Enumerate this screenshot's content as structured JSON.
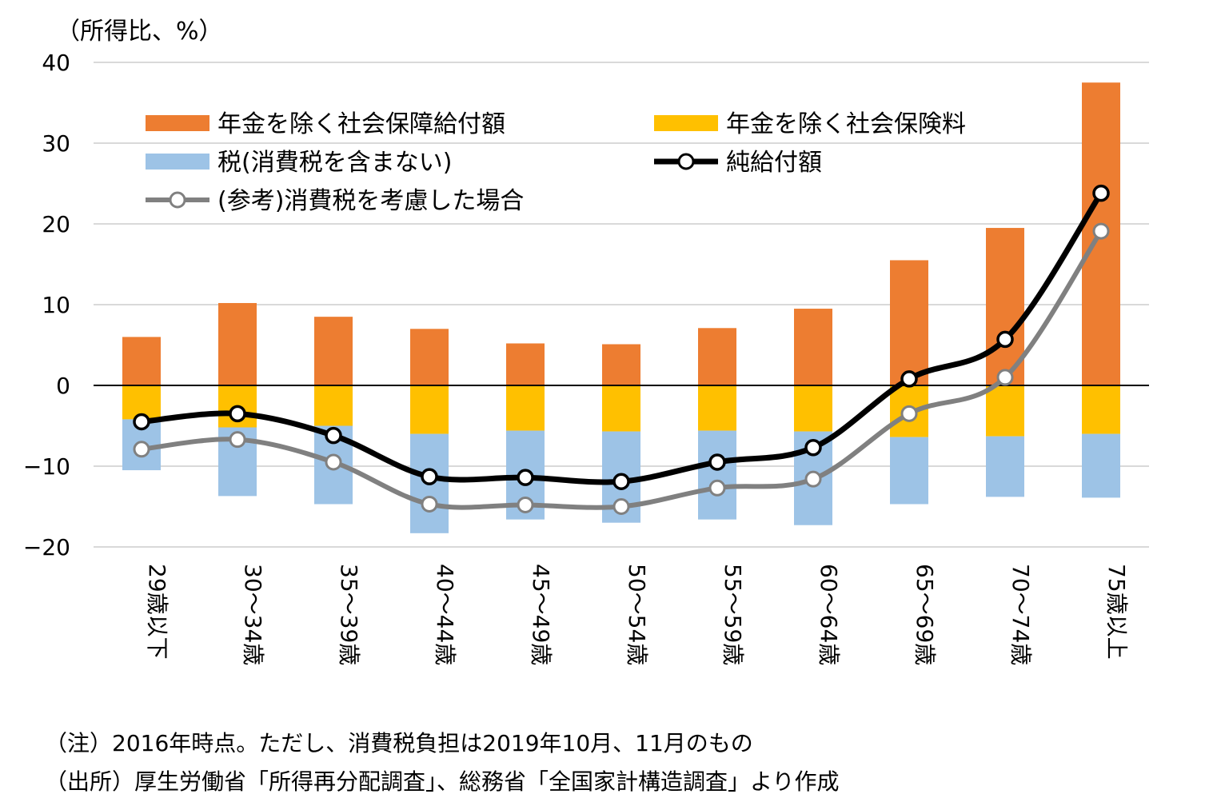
{
  "chart_data": {
    "type": "bar",
    "unit_label": "（所得比、%）",
    "categories": [
      "29歳以下",
      "30～34歳",
      "35～39歳",
      "40～44歳",
      "45～49歳",
      "50～54歳",
      "55～59歳",
      "60～64歳",
      "65～69歳",
      "70～74歳",
      "75歳以上"
    ],
    "ylim": [
      -20,
      40
    ],
    "yticks": [
      "40",
      "30",
      "20",
      "10",
      "0",
      "−10",
      "−20"
    ],
    "ytick_values": [
      40,
      30,
      20,
      10,
      0,
      -10,
      -20
    ],
    "grid": true,
    "stacked": true,
    "series": [
      {
        "name": "年金を除く社会保障給付額",
        "kind": "bar",
        "color": "#ED7D31",
        "values": [
          6.0,
          10.2,
          8.5,
          7.0,
          5.2,
          5.1,
          7.1,
          9.5,
          15.5,
          19.5,
          37.5
        ]
      },
      {
        "name": "年金を除く社会保険料",
        "kind": "bar",
        "color": "#FFC000",
        "values": [
          -4.2,
          -5.2,
          -5.0,
          -6.0,
          -5.6,
          -5.7,
          -5.6,
          -5.7,
          -6.4,
          -6.3,
          -6.0
        ]
      },
      {
        "name": "税(消費税を含まない)",
        "kind": "bar",
        "color": "#9DC3E6",
        "values": [
          -6.3,
          -8.5,
          -9.7,
          -12.3,
          -11.0,
          -11.3,
          -11.0,
          -11.6,
          -8.3,
          -7.5,
          -7.9
        ]
      },
      {
        "name": "純給付額",
        "kind": "line",
        "color": "#000000",
        "values": [
          -4.5,
          -3.5,
          -6.2,
          -11.3,
          -11.4,
          -11.9,
          -9.5,
          -7.7,
          0.8,
          5.7,
          23.8
        ]
      },
      {
        "name": "(参考)消費税を考慮した場合",
        "kind": "line",
        "color": "#808080",
        "values": [
          -7.9,
          -6.7,
          -9.5,
          -14.7,
          -14.8,
          -15.0,
          -12.7,
          -11.6,
          -3.5,
          1.0,
          19.1
        ]
      }
    ],
    "legend_position": "top-left"
  },
  "notes": {
    "note1": "（注）2016年時点。ただし、消費税負担は2019年10月、11月のもの",
    "note2": "（出所）厚生労働省「所得再分配調査」、総務省「全国家計構造調査」より作成"
  }
}
